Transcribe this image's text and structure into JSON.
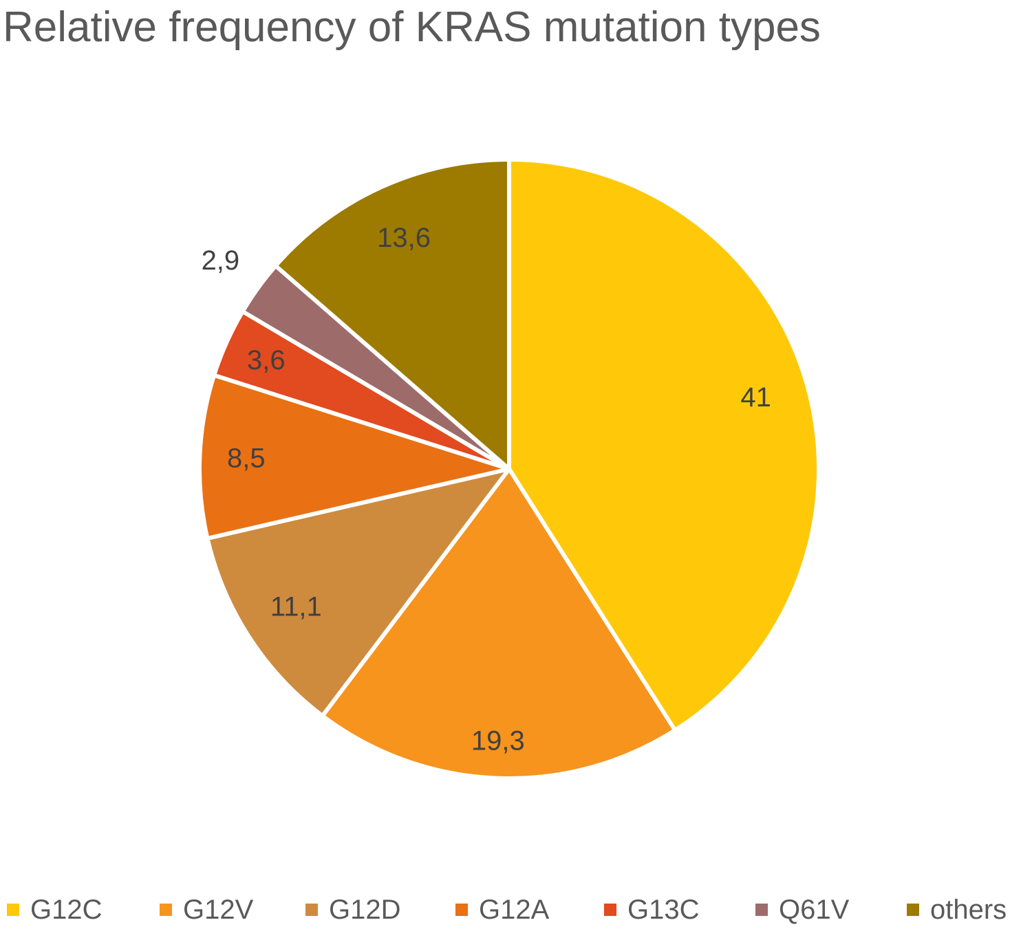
{
  "chart_data": {
    "type": "pie",
    "title": "Relative frequency of KRAS mutation types",
    "categories": [
      "G12C",
      "G12V",
      "G12D",
      "G12A",
      "G13C",
      "Q61V",
      "others"
    ],
    "values": [
      41,
      19.3,
      11.1,
      8.5,
      3.6,
      2.9,
      13.6
    ],
    "data_labels": [
      "41",
      "19,3",
      "11,1",
      "8,5",
      "3,6",
      "2,9",
      "13,6"
    ],
    "colors": [
      "#FFC90A",
      "#F7941D",
      "#CE8B3E",
      "#EA7014",
      "#E24A1F",
      "#9E6B6B",
      "#9C7B00"
    ],
    "start_angle_deg": 0,
    "direction": "clockwise",
    "legend_position": "bottom"
  }
}
